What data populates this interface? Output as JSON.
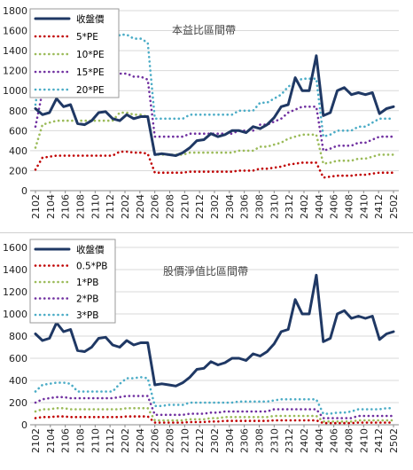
{
  "chart_data": [
    {
      "type": "line",
      "title": "本益比區間帶",
      "ylim": [
        0,
        1800
      ],
      "yticks": [
        0,
        200,
        400,
        600,
        800,
        1000,
        1200,
        1400,
        1600,
        1800
      ],
      "tick_labels": [
        "2102",
        "2104",
        "2106",
        "2108",
        "2110",
        "2112",
        "2202",
        "2204",
        "2206",
        "2208",
        "2210",
        "2212",
        "2302",
        "2304",
        "2306",
        "2308",
        "2310",
        "2312",
        "2402",
        "2404",
        "2406",
        "2408",
        "2410",
        "2412",
        "2502"
      ],
      "grid": true,
      "legend_position": "top-left",
      "series": [
        {
          "name": "收盤價",
          "color": "#1f3864",
          "style": "solid",
          "values": [
            820,
            760,
            780,
            920,
            840,
            860,
            670,
            660,
            700,
            780,
            790,
            720,
            700,
            760,
            720,
            740,
            740,
            360,
            370,
            360,
            350,
            380,
            430,
            500,
            510,
            570,
            540,
            560,
            600,
            600,
            580,
            640,
            620,
            660,
            730,
            840,
            860,
            1130,
            1000,
            1000,
            1350,
            750,
            780,
            1000,
            1030,
            960,
            980,
            960,
            980,
            770,
            820,
            840
          ]
        },
        {
          "name": "5*PE",
          "color": "#c00000",
          "style": "dotted",
          "values": [
            210,
            330,
            340,
            350,
            350,
            350,
            350,
            350,
            350,
            350,
            350,
            350,
            390,
            390,
            380,
            380,
            370,
            180,
            180,
            180,
            180,
            180,
            190,
            190,
            190,
            190,
            190,
            190,
            190,
            200,
            200,
            200,
            220,
            220,
            230,
            240,
            260,
            270,
            280,
            280,
            280,
            130,
            140,
            150,
            150,
            150,
            160,
            160,
            170,
            180,
            180,
            180
          ]
        },
        {
          "name": "10*PE",
          "color": "#9bbb59",
          "style": "dotted",
          "values": [
            430,
            660,
            680,
            700,
            700,
            700,
            700,
            700,
            700,
            700,
            700,
            700,
            780,
            780,
            760,
            760,
            740,
            360,
            360,
            360,
            360,
            360,
            380,
            380,
            380,
            380,
            380,
            380,
            380,
            400,
            400,
            400,
            440,
            440,
            460,
            480,
            520,
            540,
            560,
            560,
            560,
            270,
            280,
            300,
            300,
            300,
            320,
            320,
            340,
            360,
            360,
            360
          ]
        },
        {
          "name": "15*PE",
          "color": "#7030a0",
          "style": "dotted",
          "values": [
            640,
            990,
            1020,
            1050,
            1050,
            1050,
            1050,
            1050,
            1050,
            1050,
            1050,
            1050,
            1170,
            1170,
            1140,
            1140,
            1110,
            540,
            540,
            540,
            540,
            540,
            570,
            570,
            570,
            570,
            570,
            570,
            570,
            600,
            600,
            600,
            660,
            660,
            690,
            720,
            780,
            810,
            840,
            840,
            840,
            400,
            420,
            450,
            450,
            450,
            480,
            480,
            510,
            540,
            540,
            540
          ]
        },
        {
          "name": "20*PE",
          "color": "#4bacc6",
          "style": "dotted",
          "values": [
            860,
            1320,
            1360,
            1400,
            1400,
            1400,
            1400,
            1400,
            1400,
            1400,
            1400,
            1400,
            1560,
            1560,
            1520,
            1520,
            1480,
            720,
            720,
            720,
            720,
            720,
            760,
            760,
            760,
            760,
            760,
            760,
            760,
            800,
            800,
            800,
            880,
            880,
            920,
            960,
            1040,
            1080,
            1120,
            1120,
            1120,
            540,
            560,
            600,
            600,
            600,
            640,
            640,
            680,
            720,
            720,
            720
          ]
        }
      ]
    },
    {
      "type": "line",
      "title": "股價淨值比區間帶",
      "ylim": [
        0,
        1600
      ],
      "yticks": [
        0,
        200,
        400,
        600,
        800,
        1000,
        1200,
        1400,
        1600
      ],
      "tick_labels": [
        "2102",
        "2104",
        "2106",
        "2108",
        "2110",
        "2112",
        "2202",
        "2204",
        "2206",
        "2208",
        "2210",
        "2212",
        "2302",
        "2304",
        "2306",
        "2308",
        "2310",
        "2312",
        "2402",
        "2404",
        "2406",
        "2408",
        "2410",
        "2412",
        "2502"
      ],
      "grid": true,
      "legend_position": "top-left",
      "series": [
        {
          "name": "收盤價",
          "color": "#1f3864",
          "style": "solid",
          "values": [
            820,
            760,
            780,
            920,
            840,
            860,
            670,
            660,
            700,
            780,
            790,
            720,
            700,
            760,
            720,
            740,
            740,
            360,
            370,
            360,
            350,
            380,
            430,
            500,
            510,
            570,
            540,
            560,
            600,
            600,
            580,
            640,
            620,
            660,
            730,
            840,
            860,
            1130,
            1000,
            1000,
            1350,
            750,
            780,
            1000,
            1030,
            960,
            980,
            960,
            980,
            770,
            820,
            840
          ]
        },
        {
          "name": "0.5*PB",
          "color": "#c00000",
          "style": "dotted",
          "values": [
            60,
            70,
            70,
            75,
            75,
            70,
            70,
            70,
            70,
            70,
            70,
            70,
            70,
            75,
            75,
            75,
            75,
            20,
            20,
            20,
            20,
            20,
            25,
            25,
            25,
            30,
            30,
            35,
            35,
            35,
            35,
            35,
            35,
            35,
            40,
            40,
            40,
            40,
            40,
            40,
            40,
            15,
            15,
            15,
            15,
            15,
            20,
            20,
            20,
            20,
            20,
            20
          ]
        },
        {
          "name": "1*PB",
          "color": "#9bbb59",
          "style": "dotted",
          "values": [
            120,
            140,
            140,
            150,
            150,
            140,
            140,
            140,
            140,
            140,
            140,
            140,
            140,
            150,
            150,
            150,
            150,
            40,
            40,
            40,
            40,
            40,
            50,
            50,
            50,
            60,
            60,
            70,
            70,
            70,
            70,
            70,
            70,
            70,
            80,
            80,
            80,
            80,
            80,
            80,
            80,
            30,
            30,
            30,
            30,
            30,
            40,
            40,
            40,
            40,
            40,
            40
          ]
        },
        {
          "name": "2*PB",
          "color": "#7030a0",
          "style": "dotted",
          "values": [
            200,
            230,
            240,
            250,
            250,
            240,
            240,
            240,
            240,
            240,
            240,
            240,
            250,
            260,
            260,
            260,
            260,
            90,
            90,
            90,
            90,
            90,
            100,
            100,
            100,
            110,
            110,
            120,
            120,
            120,
            120,
            120,
            120,
            120,
            140,
            140,
            140,
            140,
            140,
            140,
            140,
            60,
            60,
            60,
            60,
            60,
            80,
            80,
            80,
            80,
            80,
            80
          ]
        },
        {
          "name": "3*PB",
          "color": "#4bacc6",
          "style": "dotted",
          "values": [
            300,
            360,
            370,
            380,
            380,
            370,
            300,
            300,
            300,
            300,
            300,
            300,
            370,
            420,
            420,
            430,
            420,
            170,
            170,
            180,
            180,
            180,
            200,
            200,
            200,
            200,
            200,
            200,
            200,
            210,
            210,
            210,
            210,
            210,
            220,
            230,
            230,
            230,
            230,
            230,
            230,
            100,
            100,
            110,
            110,
            120,
            140,
            140,
            140,
            140,
            150,
            150
          ]
        }
      ]
    }
  ]
}
